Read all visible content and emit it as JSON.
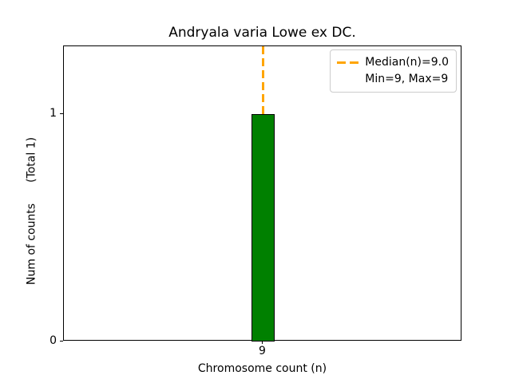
{
  "chart_data": {
    "type": "bar",
    "title": "Andryala varia Lowe ex DC.",
    "xlabel": "Chromosome count (n)",
    "ylabel": "Num of counts    (Total 1)",
    "ylabel_main": "Num of counts",
    "ylabel_suffix": "(Total 1)",
    "x": [
      9
    ],
    "values": [
      1
    ],
    "xtick_labels": [
      "9"
    ],
    "yticks": [
      0,
      1
    ],
    "ytick_labels": [
      "0",
      "1"
    ],
    "ylim": [
      0,
      1.3
    ],
    "grid": false,
    "bar_color": "#008000",
    "bar_edge_color": "#000000",
    "median_line": {
      "x": 9,
      "median": 9.0,
      "color": "#ffa500",
      "style": "dashed",
      "label": "Median(n)=9.0"
    },
    "min": 9,
    "max": 9,
    "total": 1,
    "legend": {
      "position": "upper right",
      "entries": [
        {
          "label": "Median(n)=9.0",
          "has_handle": true
        },
        {
          "label": "Min=9, Max=9",
          "has_handle": false
        }
      ]
    }
  }
}
